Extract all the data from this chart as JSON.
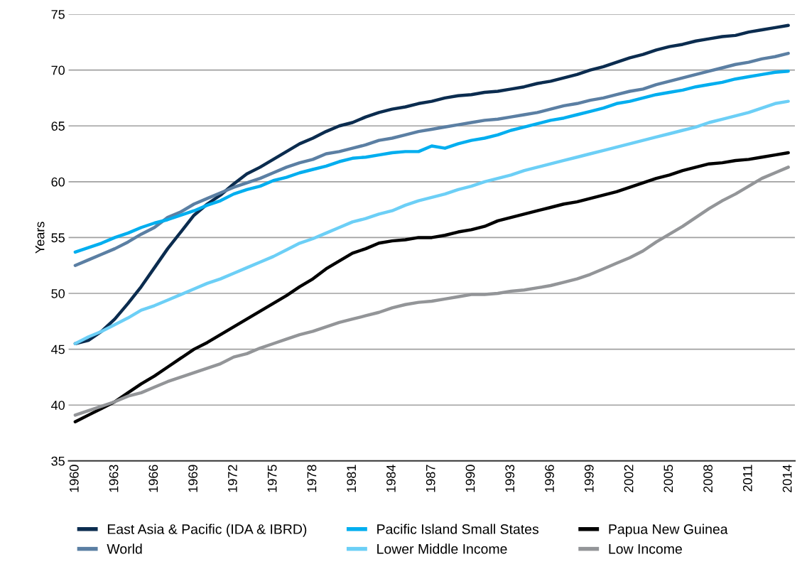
{
  "chart_data": {
    "type": "line",
    "ylabel": "Years",
    "ylim": [
      35,
      75
    ],
    "yticks": [
      35,
      40,
      45,
      50,
      55,
      60,
      65,
      70,
      75
    ],
    "grid": "y",
    "legend": "bottom",
    "line_style": "solid",
    "marker": "none",
    "categories": [
      "1960",
      null,
      null,
      "1963",
      null,
      null,
      "1966",
      null,
      null,
      "1969",
      null,
      null,
      "1972",
      null,
      null,
      "1975",
      null,
      null,
      "1978",
      null,
      null,
      "1981",
      null,
      null,
      "1984",
      null,
      null,
      "1987",
      null,
      null,
      "1990",
      null,
      null,
      "1993",
      null,
      null,
      "1996",
      null,
      null,
      "1999",
      null,
      null,
      "2002",
      null,
      null,
      "2005",
      null,
      null,
      "2008",
      null,
      null,
      "2011",
      null,
      null,
      "2014"
    ],
    "series": [
      {
        "name": "East Asia & Pacific (IDA & IBRD)",
        "color": "#0b2c4f",
        "values": [
          45.5,
          45.8,
          46.6,
          47.7,
          49.1,
          50.6,
          52.3,
          54.0,
          55.5,
          57.0,
          58.0,
          58.8,
          59.8,
          60.7,
          61.3,
          62.0,
          62.7,
          63.4,
          63.9,
          64.5,
          65.0,
          65.3,
          65.8,
          66.2,
          66.5,
          66.7,
          67.0,
          67.2,
          67.5,
          67.7,
          67.8,
          68.0,
          68.1,
          68.3,
          68.5,
          68.8,
          69.0,
          69.3,
          69.6,
          70.0,
          70.3,
          70.7,
          71.1,
          71.4,
          71.8,
          72.1,
          72.3,
          72.6,
          72.8,
          73.0,
          73.1,
          73.4,
          73.6,
          73.8,
          74.0
        ]
      },
      {
        "name": "World",
        "color": "#5b7fa3",
        "values": [
          52.5,
          53.0,
          53.5,
          54.0,
          54.6,
          55.3,
          55.9,
          56.8,
          57.3,
          58.0,
          58.5,
          59.0,
          59.5,
          59.9,
          60.3,
          60.8,
          61.3,
          61.7,
          62.0,
          62.5,
          62.7,
          63.0,
          63.3,
          63.7,
          63.9,
          64.2,
          64.5,
          64.7,
          64.9,
          65.1,
          65.3,
          65.5,
          65.6,
          65.8,
          66.0,
          66.2,
          66.5,
          66.8,
          67.0,
          67.3,
          67.5,
          67.8,
          68.1,
          68.3,
          68.7,
          69.0,
          69.3,
          69.6,
          69.9,
          70.2,
          70.5,
          70.7,
          71.0,
          71.2,
          71.5
        ]
      },
      {
        "name": "Pacific Island Small States",
        "color": "#00aeef",
        "values": [
          53.7,
          54.1,
          54.5,
          55.0,
          55.4,
          55.9,
          56.3,
          56.6,
          57.0,
          57.4,
          57.9,
          58.3,
          58.9,
          59.3,
          59.6,
          60.1,
          60.4,
          60.8,
          61.1,
          61.4,
          61.8,
          62.1,
          62.2,
          62.4,
          62.6,
          62.7,
          62.7,
          63.2,
          63.0,
          63.4,
          63.7,
          63.9,
          64.2,
          64.6,
          64.9,
          65.2,
          65.5,
          65.7,
          66.0,
          66.3,
          66.6,
          67.0,
          67.2,
          67.5,
          67.8,
          68.0,
          68.2,
          68.5,
          68.7,
          68.9,
          69.2,
          69.4,
          69.6,
          69.8,
          69.9
        ]
      },
      {
        "name": "Lower Middle Income",
        "color": "#6ccff6",
        "values": [
          45.5,
          46.1,
          46.6,
          47.2,
          47.8,
          48.5,
          48.9,
          49.4,
          49.9,
          50.4,
          50.9,
          51.3,
          51.8,
          52.3,
          52.8,
          53.3,
          53.9,
          54.5,
          54.9,
          55.4,
          55.9,
          56.4,
          56.7,
          57.1,
          57.4,
          57.9,
          58.3,
          58.6,
          58.9,
          59.3,
          59.6,
          60.0,
          60.3,
          60.6,
          61.0,
          61.3,
          61.6,
          61.9,
          62.2,
          62.5,
          62.8,
          63.1,
          63.4,
          63.7,
          64.0,
          64.3,
          64.6,
          64.9,
          65.3,
          65.6,
          65.9,
          66.2,
          66.6,
          67.0,
          67.2
        ]
      },
      {
        "name": "Papua New Guinea",
        "color": "#000000",
        "values": [
          38.5,
          39.1,
          39.7,
          40.3,
          41.1,
          41.9,
          42.6,
          43.4,
          44.2,
          45.0,
          45.6,
          46.3,
          47.0,
          47.7,
          48.4,
          49.1,
          49.8,
          50.6,
          51.3,
          52.2,
          52.9,
          53.6,
          54.0,
          54.5,
          54.7,
          54.8,
          55.0,
          55.0,
          55.2,
          55.5,
          55.7,
          56.0,
          56.5,
          56.8,
          57.1,
          57.4,
          57.7,
          58.0,
          58.2,
          58.5,
          58.8,
          59.1,
          59.5,
          59.9,
          60.3,
          60.6,
          61.0,
          61.3,
          61.6,
          61.7,
          61.9,
          62.0,
          62.2,
          62.4,
          62.6
        ]
      },
      {
        "name": "Low Income",
        "color": "#939598",
        "values": [
          39.1,
          39.5,
          39.9,
          40.3,
          40.8,
          41.1,
          41.6,
          42.1,
          42.5,
          42.9,
          43.3,
          43.7,
          44.3,
          44.6,
          45.1,
          45.5,
          45.9,
          46.3,
          46.6,
          47.0,
          47.4,
          47.7,
          48.0,
          48.3,
          48.7,
          49.0,
          49.2,
          49.3,
          49.5,
          49.7,
          49.9,
          49.9,
          50.0,
          50.2,
          50.3,
          50.5,
          50.7,
          51.0,
          51.3,
          51.7,
          52.2,
          52.7,
          53.2,
          53.8,
          54.6,
          55.3,
          56.0,
          56.8,
          57.6,
          58.3,
          58.9,
          59.6,
          60.3,
          60.8,
          61.3
        ]
      }
    ]
  }
}
